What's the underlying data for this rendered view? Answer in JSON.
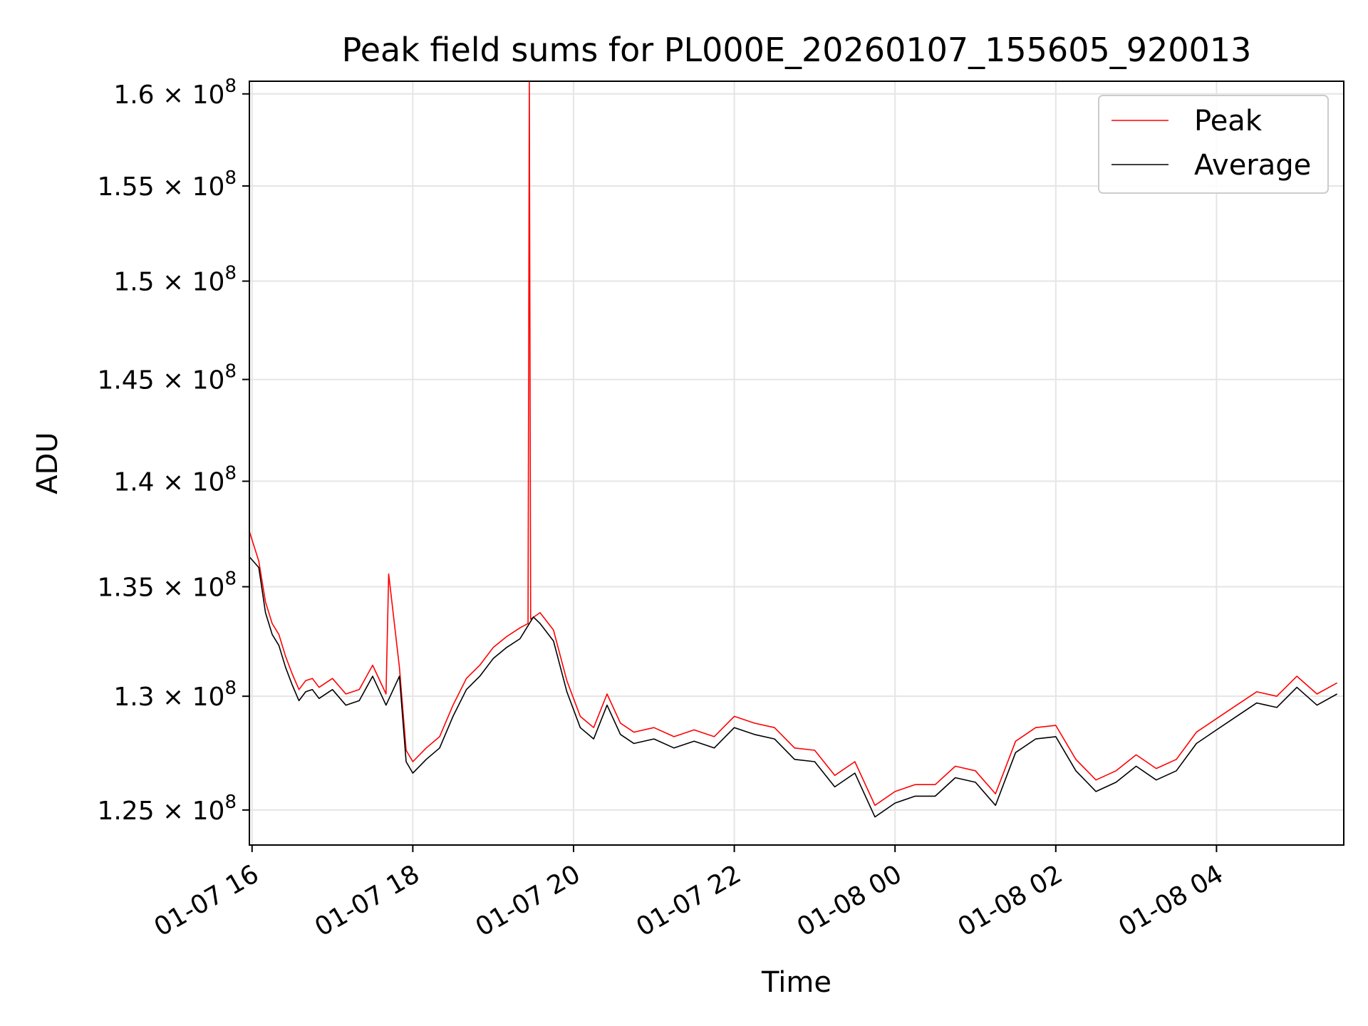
{
  "chart_data": {
    "type": "line",
    "title": "Peak field sums for PL000E_20260107_155605_920013",
    "xlabel": "Time",
    "ylabel": "ADU",
    "y_scale": "log",
    "grid": true,
    "legend_position": "top-right",
    "xlim": [
      "01-07 15:58",
      "01-08 05:35"
    ],
    "ylim": [
      123500000,
      160700000
    ],
    "x_ticks": [
      "01-07 16",
      "01-07 18",
      "01-07 20",
      "01-07 22",
      "01-08 00",
      "01-08 02",
      "01-08 04"
    ],
    "y_ticks": [
      {
        "value": 125000000,
        "mantissa": "1.25"
      },
      {
        "value": 130000000,
        "mantissa": "1.3"
      },
      {
        "value": 135000000,
        "mantissa": "1.35"
      },
      {
        "value": 140000000,
        "mantissa": "1.4"
      },
      {
        "value": 145000000,
        "mantissa": "1.45"
      },
      {
        "value": 150000000,
        "mantissa": "1.5"
      },
      {
        "value": 155000000,
        "mantissa": "1.55"
      },
      {
        "value": 160000000,
        "mantissa": "1.6"
      }
    ],
    "y_tick_suffix": "× 10",
    "y_tick_exponent": "8",
    "series": [
      {
        "name": "Peak",
        "color": "#ff0000",
        "x": [
          "01-07 15:58",
          "01-07 16:05",
          "01-07 16:10",
          "01-07 16:15",
          "01-07 16:20",
          "01-07 16:25",
          "01-07 16:30",
          "01-07 16:35",
          "01-07 16:40",
          "01-07 16:45",
          "01-07 16:50",
          "01-07 17:00",
          "01-07 17:10",
          "01-07 17:20",
          "01-07 17:30",
          "01-07 17:40",
          "01-07 17:42",
          "01-07 17:50",
          "01-07 17:55",
          "01-07 18:00",
          "01-07 18:10",
          "01-07 18:20",
          "01-07 18:30",
          "01-07 18:40",
          "01-07 18:50",
          "01-07 19:00",
          "01-07 19:10",
          "01-07 19:20",
          "01-07 19:26",
          "01-07 19:27",
          "01-07 19:28",
          "01-07 19:35",
          "01-07 19:45",
          "01-07 19:55",
          "01-07 20:05",
          "01-07 20:15",
          "01-07 20:25",
          "01-07 20:35",
          "01-07 20:45",
          "01-07 21:00",
          "01-07 21:15",
          "01-07 21:30",
          "01-07 21:45",
          "01-07 22:00",
          "01-07 22:15",
          "01-07 22:30",
          "01-07 22:45",
          "01-07 23:00",
          "01-07 23:15",
          "01-07 23:30",
          "01-07 23:45",
          "01-08 00:00",
          "01-08 00:15",
          "01-08 00:30",
          "01-08 00:45",
          "01-08 01:00",
          "01-08 01:15",
          "01-08 01:30",
          "01-08 01:45",
          "01-08 02:00",
          "01-08 02:15",
          "01-08 02:30",
          "01-08 02:45",
          "01-08 03:00",
          "01-08 03:15",
          "01-08 03:30",
          "01-08 03:45",
          "01-08 04:00",
          "01-08 04:15",
          "01-08 04:30",
          "01-08 04:45",
          "01-08 05:00",
          "01-08 05:15",
          "01-08 05:30"
        ],
        "y": [
          137600000,
          136200000,
          134300000,
          133300000,
          132800000,
          131800000,
          131000000,
          130300000,
          130700000,
          130800000,
          130400000,
          130800000,
          130100000,
          130300000,
          131400000,
          130100000,
          135600000,
          131300000,
          127600000,
          127100000,
          127700000,
          128200000,
          129600000,
          130800000,
          131400000,
          132200000,
          132700000,
          133100000,
          133300000,
          160700000,
          133500000,
          133800000,
          133000000,
          130700000,
          129100000,
          128600000,
          130100000,
          128800000,
          128400000,
          128600000,
          128200000,
          128500000,
          128200000,
          129100000,
          128800000,
          128600000,
          127700000,
          127600000,
          126500000,
          127100000,
          125200000,
          125800000,
          126100000,
          126100000,
          126900000,
          126700000,
          125700000,
          128000000,
          128600000,
          128700000,
          127200000,
          126300000,
          126700000,
          127400000,
          126800000,
          127200000,
          128400000,
          129000000,
          129600000,
          130200000,
          130000000,
          130900000,
          130100000,
          130600000
        ]
      },
      {
        "name": "Average",
        "color": "#000000",
        "x": [
          "01-07 15:58",
          "01-07 16:05",
          "01-07 16:10",
          "01-07 16:15",
          "01-07 16:20",
          "01-07 16:25",
          "01-07 16:30",
          "01-07 16:35",
          "01-07 16:40",
          "01-07 16:45",
          "01-07 16:50",
          "01-07 17:00",
          "01-07 17:10",
          "01-07 17:20",
          "01-07 17:30",
          "01-07 17:40",
          "01-07 17:50",
          "01-07 17:55",
          "01-07 18:00",
          "01-07 18:10",
          "01-07 18:20",
          "01-07 18:30",
          "01-07 18:40",
          "01-07 18:50",
          "01-07 19:00",
          "01-07 19:10",
          "01-07 19:20",
          "01-07 19:30",
          "01-07 19:35",
          "01-07 19:45",
          "01-07 19:55",
          "01-07 20:05",
          "01-07 20:15",
          "01-07 20:25",
          "01-07 20:35",
          "01-07 20:45",
          "01-07 21:00",
          "01-07 21:15",
          "01-07 21:30",
          "01-07 21:45",
          "01-07 22:00",
          "01-07 22:15",
          "01-07 22:30",
          "01-07 22:45",
          "01-07 23:00",
          "01-07 23:15",
          "01-07 23:30",
          "01-07 23:45",
          "01-08 00:00",
          "01-08 00:15",
          "01-08 00:30",
          "01-08 00:45",
          "01-08 01:00",
          "01-08 01:15",
          "01-08 01:30",
          "01-08 01:45",
          "01-08 02:00",
          "01-08 02:15",
          "01-08 02:30",
          "01-08 02:45",
          "01-08 03:00",
          "01-08 03:15",
          "01-08 03:30",
          "01-08 03:45",
          "01-08 04:00",
          "01-08 04:15",
          "01-08 04:30",
          "01-08 04:45",
          "01-08 05:00",
          "01-08 05:15",
          "01-08 05:30"
        ],
        "y": [
          136400000,
          135900000,
          133800000,
          132800000,
          132300000,
          131300000,
          130500000,
          129800000,
          130200000,
          130300000,
          129900000,
          130300000,
          129600000,
          129800000,
          130900000,
          129600000,
          130900000,
          127100000,
          126600000,
          127200000,
          127700000,
          129100000,
          130300000,
          130900000,
          131700000,
          132200000,
          132600000,
          133600000,
          133300000,
          132500000,
          130200000,
          128600000,
          128100000,
          129600000,
          128300000,
          127900000,
          128100000,
          127700000,
          128000000,
          127700000,
          128600000,
          128300000,
          128100000,
          127200000,
          127100000,
          126000000,
          126600000,
          124700000,
          125300000,
          125600000,
          125600000,
          126400000,
          126200000,
          125200000,
          127500000,
          128100000,
          128200000,
          126700000,
          125800000,
          126200000,
          126900000,
          126300000,
          126700000,
          127900000,
          128500000,
          129100000,
          129700000,
          129500000,
          130400000,
          129600000,
          130100000
        ]
      }
    ]
  }
}
